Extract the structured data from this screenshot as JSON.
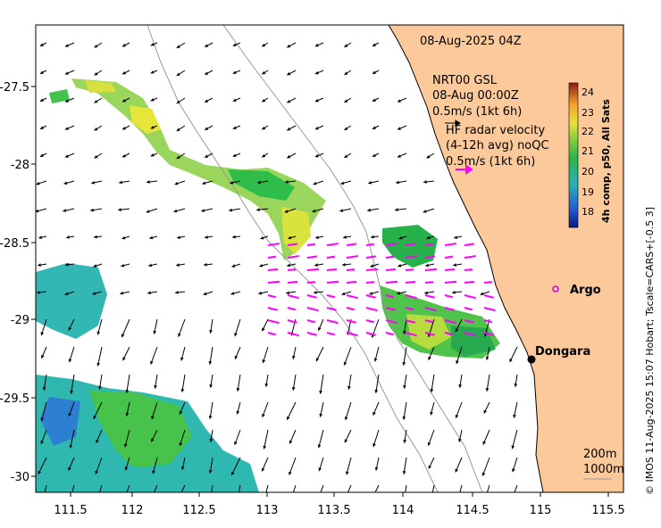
{
  "map": {
    "timestamp": "08-Aug-2025 04Z",
    "x_ticks": [
      "111.5",
      "112",
      "112.5",
      "113",
      "113.5",
      "114",
      "114.5",
      "115",
      "115.5"
    ],
    "y_ticks": [
      "-27.5",
      "-28",
      "-28.5",
      "-29",
      "-29.5",
      "-30"
    ],
    "gsl_title": "NRT00 GSL",
    "gsl_date": "08-Aug 00:00Z",
    "gsl_scale": "0.5m/s (1kt 6h)",
    "hf_title": "HF radar velocity",
    "hf_sub": "(4-12h avg) noQC",
    "hf_scale": "0.5m/s (1kt 6h)",
    "colorbar_title": "4h comp, p50, All Sats",
    "colorbar_ticks": [
      "24",
      "23",
      "22",
      "21",
      "20",
      "19",
      "18"
    ],
    "places": {
      "argo": "Argo",
      "dongara": "Dongara"
    },
    "depth_200": "200m",
    "depth_1000": "1000m",
    "side_text": "© IMOS 11-Aug-2025 15:07 Hobart; Tscale=CARS+[-0.5 3]",
    "colors": {
      "land": "#fbc99a",
      "hf_arrow": "#ff00ff",
      "argo": "#cc00cc",
      "dongara": "#000000"
    }
  }
}
